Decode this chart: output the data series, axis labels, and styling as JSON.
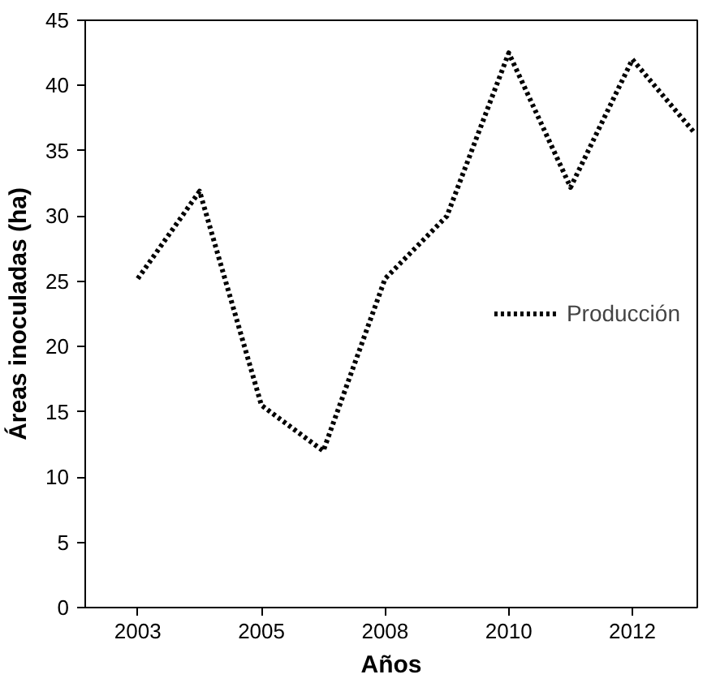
{
  "chart_data": {
    "type": "line",
    "xlabel": "Años",
    "ylabel": "Áreas inoculadas (ha)",
    "categories": [
      "2003",
      null,
      "2005",
      null,
      "2008",
      null,
      "2010",
      null,
      "2012",
      null
    ],
    "ylim": [
      0,
      45
    ],
    "yticks": [
      0,
      5,
      10,
      15,
      20,
      25,
      30,
      35,
      40,
      45
    ],
    "series": [
      {
        "name": "Producción",
        "color": "#000000",
        "values": [
          25.2,
          31.9,
          15.5,
          12,
          25.2,
          30,
          42.5,
          32.2,
          42,
          36.4
        ]
      }
    ],
    "line_style": "dotted",
    "marker": "none",
    "grid": false,
    "legend": "right"
  }
}
